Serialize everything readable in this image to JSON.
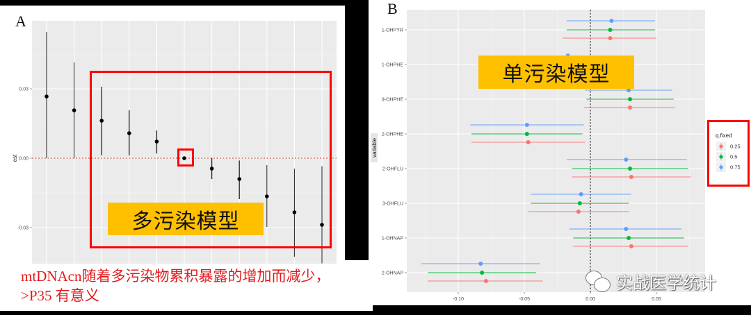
{
  "panelA": {
    "letter": "A",
    "ylabel": "est",
    "yticks": [
      {
        "value": 0.03,
        "label": "0.03"
      },
      {
        "value": 0.0,
        "label": "0.00"
      },
      {
        "value": -0.03,
        "label": "-0.03"
      }
    ],
    "annotation_box_label": "多污染模型",
    "note_line1": "mtDNAcn随着多污染物累积暴露的增加而减少，",
    "note_line2": ">P35 有意义"
  },
  "panelB": {
    "letter": "B",
    "ylabel": "variable",
    "xticks": [
      {
        "value": -0.1,
        "label": "-0.10"
      },
      {
        "value": -0.05,
        "label": "-0.05"
      },
      {
        "value": 0.0,
        "label": "0.00"
      },
      {
        "value": 0.05,
        "label": "0.05"
      }
    ],
    "annotation_box_label": "单污染模型",
    "legend": {
      "title": "q.fixed",
      "items": [
        {
          "label": "0.25",
          "color": "#f8766d"
        },
        {
          "label": "0.5",
          "color": "#00ba38"
        },
        {
          "label": "0.75",
          "color": "#619cff"
        }
      ]
    }
  },
  "watermark": "实战医学统计",
  "colors": {
    "panel_bg": "#ebebeb",
    "grid": "#ffffff",
    "highlight": "#ff0000",
    "label_box": "#ffc000",
    "note_text": "#e31a1c",
    "zero_line_A": "#c0392b"
  },
  "chart_data": [
    {
      "type": "scatter",
      "title": "A",
      "xlabel": "",
      "ylabel": "est",
      "ylim": [
        -0.045,
        0.06
      ],
      "grid": true,
      "reference_line": {
        "y": 0,
        "style": "dotted",
        "color": "#c0392b"
      },
      "x": [
        1,
        2,
        3,
        4,
        5,
        6,
        7,
        8,
        9,
        10,
        11
      ],
      "series": [
        {
          "name": "est",
          "values": [
            0.0267,
            0.0207,
            0.0162,
            0.0108,
            0.0072,
            0.0,
            -0.0045,
            -0.009,
            -0.0165,
            -0.0234,
            -0.0288
          ],
          "lower": [
            0.0,
            0.0,
            0.0012,
            0.0012,
            0.002,
            0.0,
            -0.009,
            -0.0177,
            -0.0297,
            -0.0426,
            -0.046
          ],
          "upper": [
            0.0546,
            0.0414,
            0.0309,
            0.0207,
            0.012,
            0.0,
            0.0,
            -0.001,
            -0.003,
            -0.0045,
            -0.0035
          ]
        }
      ],
      "annotations": [
        "多污染模型",
        "mtDNAcn随着多污染物累积暴露的增加而减少，>P35 有意义"
      ]
    },
    {
      "type": "scatter",
      "title": "B",
      "xlabel": "",
      "ylabel": "variable",
      "xlim": [
        -0.133,
        0.086
      ],
      "grid": true,
      "reference_line": {
        "x": 0,
        "style": "dotted",
        "color": "#000000"
      },
      "categories": [
        "1-OHPYR",
        "1-OHPHE",
        "9-OHPHE",
        "2-OHPHE",
        "2-OHFLU",
        "3-OHFLU",
        "1-OHNAP",
        "2-OHNAP"
      ],
      "legend": {
        "title": "q.fixed",
        "position": "right"
      },
      "series": [
        {
          "name": "0.25",
          "color": "#f8766d",
          "values": [
            0.015,
            null,
            0.03,
            -0.047,
            0.031,
            -0.009,
            0.031,
            -0.079
          ],
          "lower": [
            -0.021,
            null,
            -0.005,
            -0.09,
            -0.014,
            -0.047,
            -0.013,
            -0.123
          ],
          "upper": [
            0.05,
            null,
            0.064,
            -0.004,
            0.076,
            0.029,
            0.074,
            -0.036
          ]
        },
        {
          "name": "0.5",
          "color": "#00ba38",
          "values": [
            0.015,
            null,
            0.03,
            -0.048,
            0.03,
            -0.008,
            0.029,
            -0.082
          ],
          "lower": [
            -0.018,
            null,
            -0.003,
            -0.09,
            -0.014,
            -0.045,
            -0.013,
            -0.123
          ],
          "upper": [
            0.049,
            null,
            0.063,
            -0.006,
            0.074,
            0.029,
            0.071,
            -0.041
          ]
        },
        {
          "name": "0.75",
          "color": "#619cff",
          "values": [
            0.016,
            -0.017,
            0.029,
            -0.048,
            0.027,
            -0.007,
            0.027,
            -0.083
          ],
          "lower": [
            -0.018,
            null,
            -0.004,
            -0.091,
            -0.018,
            -0.045,
            -0.016,
            -0.128
          ],
          "upper": [
            0.049,
            null,
            0.062,
            -0.005,
            0.073,
            0.031,
            0.069,
            -0.038
          ]
        }
      ],
      "annotations": [
        "单污染模型"
      ]
    }
  ]
}
